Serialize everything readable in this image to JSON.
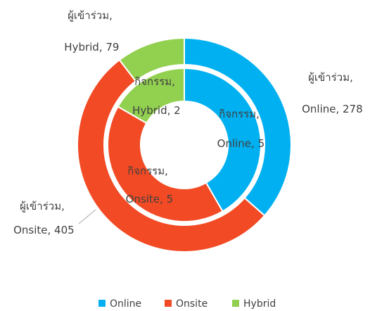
{
  "chart_data": {
    "type": "donut",
    "categories": [
      "Online",
      "Onsite",
      "Hybrid"
    ],
    "colors": [
      "#00b0f0",
      "#f24a24",
      "#92d050"
    ],
    "series": [
      {
        "values": [
          278,
          405,
          79
        ],
        "value_labels": [
          "ผู้เข้าร่วม, Online, 278",
          "ผู้เข้าร่วม, Onsite, 405",
          "ผู้เข้าร่วม, Hybrid, 79"
        ]
      },
      {
        "values": [
          5,
          5,
          2
        ],
        "value_labels": [
          "กิจกรรม, Online, 5",
          "กิจกรรม, Onsite, 5",
          "กิจกรรม, Hybrid, 2"
        ]
      }
    ],
    "legend": "bottom"
  }
}
